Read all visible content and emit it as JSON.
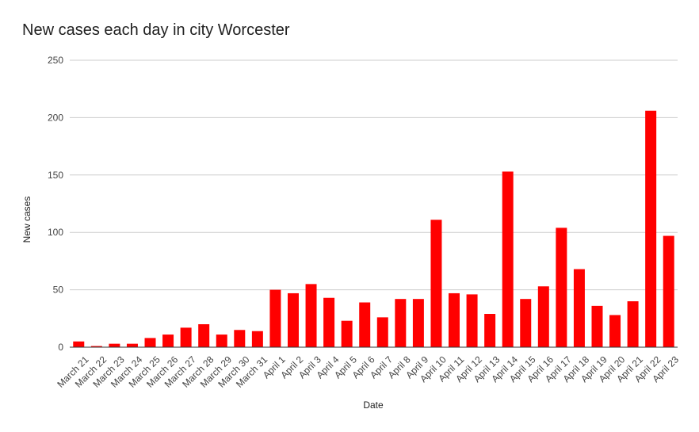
{
  "chart_data": {
    "type": "bar",
    "title": "New cases each day in city Worcester",
    "xlabel": "Date",
    "ylabel": "New cases",
    "ylim": [
      0,
      250
    ],
    "yticks": [
      0,
      50,
      100,
      150,
      200,
      250
    ],
    "grid": true,
    "legend": "none",
    "bar_color": "#ff0000",
    "categories": [
      "March 21",
      "March 22",
      "March 23",
      "March 24",
      "March 25",
      "March 26",
      "March 27",
      "March 28",
      "March 29",
      "March 30",
      "March 31",
      "April 1",
      "April 2",
      "April 3",
      "April 4",
      "April 5",
      "April 6",
      "April 7",
      "April 8",
      "April 9",
      "April 10",
      "April 11",
      "April 12",
      "April 13",
      "April 14",
      "April 15",
      "April 16",
      "April 17",
      "April 18",
      "April 19",
      "April 20",
      "April 21",
      "April 22",
      "April 23"
    ],
    "values": [
      5,
      1,
      3,
      3,
      8,
      11,
      17,
      20,
      11,
      15,
      14,
      50,
      47,
      55,
      43,
      23,
      39,
      26,
      42,
      42,
      111,
      47,
      46,
      29,
      153,
      42,
      53,
      104,
      68,
      36,
      28,
      40,
      206,
      97
    ]
  }
}
